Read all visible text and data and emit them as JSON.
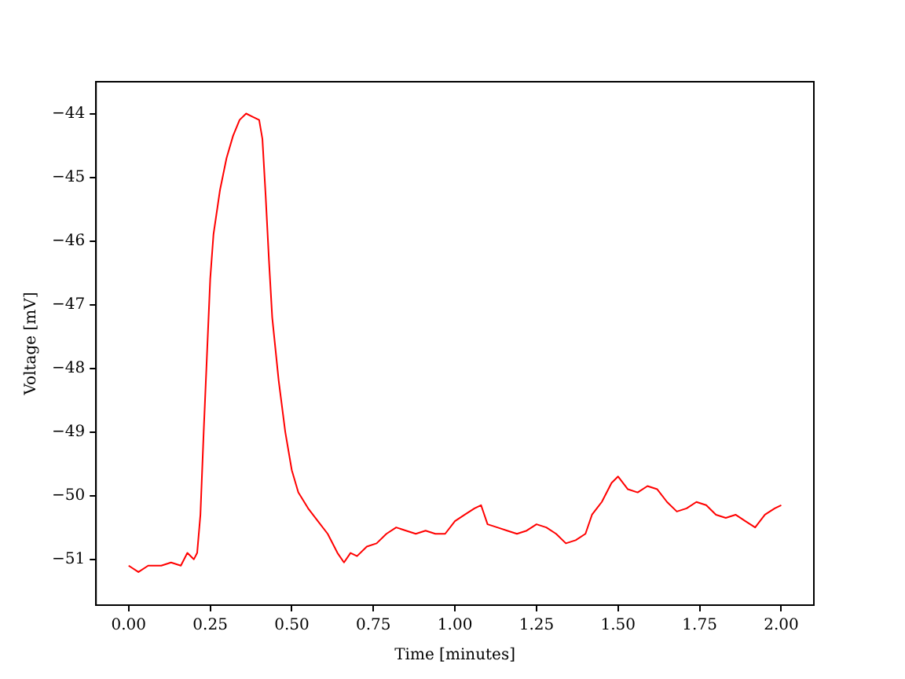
{
  "chart_data": {
    "type": "line",
    "xlabel": "Time [minutes]",
    "ylabel": "Voltage [mV]",
    "series": [
      {
        "color": "#ff0000",
        "x": [
          0,
          0.03,
          0.06,
          0.1,
          0.13,
          0.16,
          0.18,
          0.2,
          0.21,
          0.22,
          0.23,
          0.24,
          0.25,
          0.26,
          0.28,
          0.3,
          0.32,
          0.34,
          0.36,
          0.38,
          0.4,
          0.41,
          0.42,
          0.43,
          0.44,
          0.46,
          0.48,
          0.5,
          0.52,
          0.55,
          0.58,
          0.61,
          0.64,
          0.66,
          0.68,
          0.7,
          0.73,
          0.76,
          0.79,
          0.82,
          0.85,
          0.88,
          0.91,
          0.94,
          0.97,
          1.0,
          1.03,
          1.06,
          1.08,
          1.1,
          1.13,
          1.16,
          1.19,
          1.22,
          1.25,
          1.28,
          1.31,
          1.34,
          1.37,
          1.4,
          1.42,
          1.45,
          1.48,
          1.5,
          1.53,
          1.56,
          1.59,
          1.62,
          1.65,
          1.68,
          1.71,
          1.74,
          1.77,
          1.8,
          1.83,
          1.86,
          1.89,
          1.92,
          1.95,
          1.98,
          2.0
        ],
        "values": [
          -51.1,
          -51.2,
          -51.1,
          -51.1,
          -51.05,
          -51.1,
          -50.9,
          -51.0,
          -50.9,
          -50.3,
          -49.0,
          -47.8,
          -46.6,
          -45.9,
          -45.2,
          -44.7,
          -44.35,
          -44.1,
          -44.0,
          -44.05,
          -44.1,
          -44.4,
          -45.3,
          -46.3,
          -47.2,
          -48.2,
          -49.0,
          -49.6,
          -49.95,
          -50.2,
          -50.4,
          -50.6,
          -50.9,
          -51.05,
          -50.9,
          -50.95,
          -50.8,
          -50.75,
          -50.6,
          -50.5,
          -50.55,
          -50.6,
          -50.55,
          -50.6,
          -50.6,
          -50.4,
          -50.3,
          -50.2,
          -50.15,
          -50.45,
          -50.5,
          -50.55,
          -50.6,
          -50.55,
          -50.45,
          -50.5,
          -50.6,
          -50.75,
          -50.7,
          -50.6,
          -50.3,
          -50.1,
          -49.8,
          -49.7,
          -49.9,
          -49.95,
          -49.85,
          -49.9,
          -50.1,
          -50.25,
          -50.2,
          -50.1,
          -50.15,
          -50.3,
          -50.35,
          -50.3,
          -50.4,
          -50.5,
          -50.3,
          -50.2,
          -50.15
        ]
      }
    ],
    "xlim": [
      -0.1,
      2.1
    ],
    "ylim": [
      -51.72,
      -43.5
    ],
    "xticks": [
      {
        "value": 0,
        "label": "0.00"
      },
      {
        "value": 0.25,
        "label": "0.25"
      },
      {
        "value": 0.5,
        "label": "0.50"
      },
      {
        "value": 0.75,
        "label": "0.75"
      },
      {
        "value": 1,
        "label": "1.00"
      },
      {
        "value": 1.25,
        "label": "1.25"
      },
      {
        "value": 1.5,
        "label": "1.50"
      },
      {
        "value": 1.75,
        "label": "1.75"
      },
      {
        "value": 2,
        "label": "2.00"
      }
    ],
    "yticks": [
      {
        "value": -44,
        "label": "−44"
      },
      {
        "value": -45,
        "label": "−45"
      },
      {
        "value": -46,
        "label": "−46"
      },
      {
        "value": -47,
        "label": "−47"
      },
      {
        "value": -48,
        "label": "−48"
      },
      {
        "value": -49,
        "label": "−49"
      },
      {
        "value": -50,
        "label": "−50"
      },
      {
        "value": -51,
        "label": "−51"
      }
    ],
    "grid": false,
    "legend": false
  }
}
